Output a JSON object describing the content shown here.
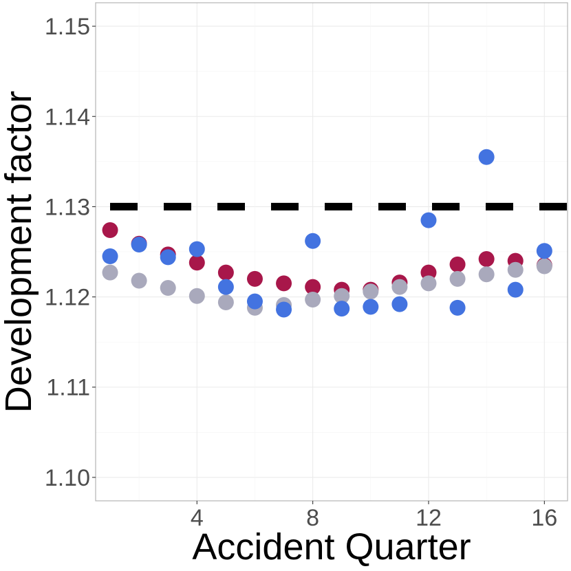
{
  "chart_data": {
    "type": "scatter",
    "title": "",
    "xlabel": "Accident Quarter",
    "ylabel": "Development factor",
    "xlim": [
      0.5,
      16.8
    ],
    "ylim": [
      1.0974,
      1.1526
    ],
    "xticks": [
      4,
      8,
      12,
      16
    ],
    "xtick_labels": [
      "4",
      "8",
      "12",
      "16"
    ],
    "yticks": [
      1.1,
      1.11,
      1.12,
      1.13,
      1.14,
      1.15
    ],
    "ytick_labels": [
      "1.10",
      "1.11",
      "1.12",
      "1.13",
      "1.14",
      "1.15"
    ],
    "grid": true,
    "legend": "none",
    "reference_line": {
      "y": 1.13,
      "style": "dashed",
      "color": "#000000"
    },
    "series": [
      {
        "color": "#a8174a",
        "x": [
          1,
          2,
          3,
          4,
          5,
          6,
          7,
          8,
          9,
          10,
          11,
          12,
          13,
          14,
          15,
          16
        ],
        "y": [
          1.1274,
          1.1259,
          1.1247,
          1.1238,
          1.1227,
          1.122,
          1.1215,
          1.1211,
          1.1208,
          1.1208,
          1.1216,
          1.1227,
          1.1236,
          1.1242,
          1.124,
          1.1235
        ]
      },
      {
        "color": "#a9a9bc",
        "x": [
          1,
          2,
          3,
          4,
          5,
          6,
          7,
          8,
          9,
          10,
          11,
          12,
          13,
          14,
          15,
          16
        ],
        "y": [
          1.1227,
          1.1218,
          1.121,
          1.1201,
          1.1194,
          1.1188,
          1.1191,
          1.1197,
          1.1201,
          1.1206,
          1.1211,
          1.1215,
          1.122,
          1.1225,
          1.123,
          1.1234
        ]
      },
      {
        "color": "#4373e0",
        "x": [
          1,
          2,
          3,
          4,
          5,
          6,
          7,
          8,
          9,
          10,
          11,
          12,
          13,
          14,
          15,
          16
        ],
        "y": [
          1.1245,
          1.1258,
          1.1244,
          1.1253,
          1.1211,
          1.1195,
          1.1186,
          1.1262,
          1.1187,
          1.1189,
          1.1192,
          1.1285,
          1.1188,
          1.1355,
          1.1208,
          1.1251
        ]
      }
    ]
  }
}
